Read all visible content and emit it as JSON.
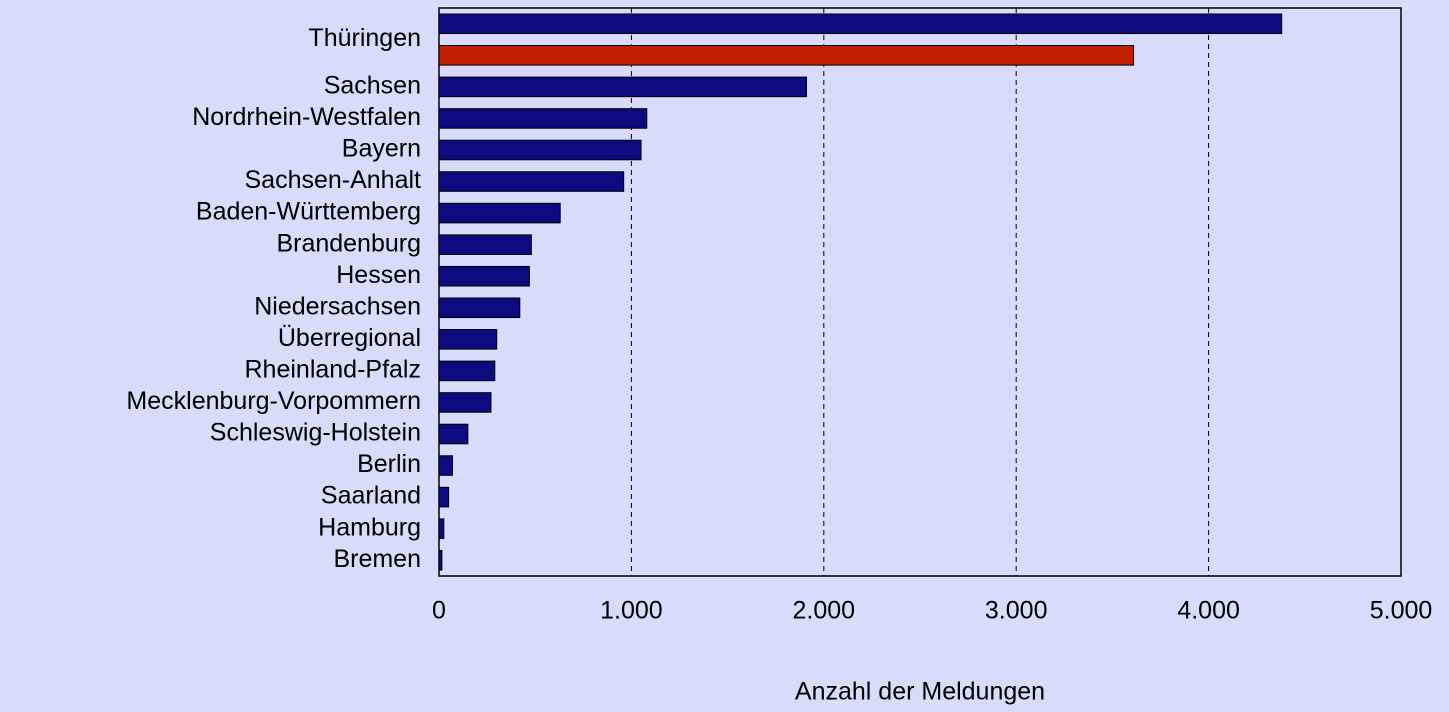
{
  "chart_data": {
    "type": "bar",
    "orientation": "horizontal",
    "x_label": "Anzahl der Meldungen",
    "categories": [
      "Thüringen",
      "Sachsen",
      "Nordrhein-Westfalen",
      "Bayern",
      "Sachsen-Anhalt",
      "Baden-Württemberg",
      "Brandenburg",
      "Hessen",
      "Niedersachsen",
      "Überregional",
      "Rheinland-Pfalz",
      "Mecklenburg-Vorpommern",
      "Schleswig-Holstein",
      "Berlin",
      "Saarland",
      "Hamburg",
      "Bremen"
    ],
    "series": [
      {
        "color": "#0c0c80",
        "values": [
          4380,
          1910,
          1080,
          1050,
          960,
          630,
          480,
          470,
          420,
          300,
          290,
          270,
          150,
          70,
          50,
          25,
          15
        ]
      },
      {
        "color": "#c02000",
        "values": [
          3610,
          null,
          null,
          null,
          null,
          null,
          null,
          null,
          null,
          null,
          null,
          null,
          null,
          null,
          null,
          null,
          null
        ]
      }
    ],
    "xlim": [
      0,
      5000
    ],
    "xticks": [
      0,
      {
        "value": 1000,
        "label": "1.000"
      },
      {
        "value": 2000,
        "label": "2.000"
      },
      {
        "value": 3000,
        "label": "3.000"
      },
      {
        "value": 4000,
        "label": "4.000"
      },
      {
        "value": 5000,
        "label": "5.000"
      }
    ],
    "grid": true
  }
}
